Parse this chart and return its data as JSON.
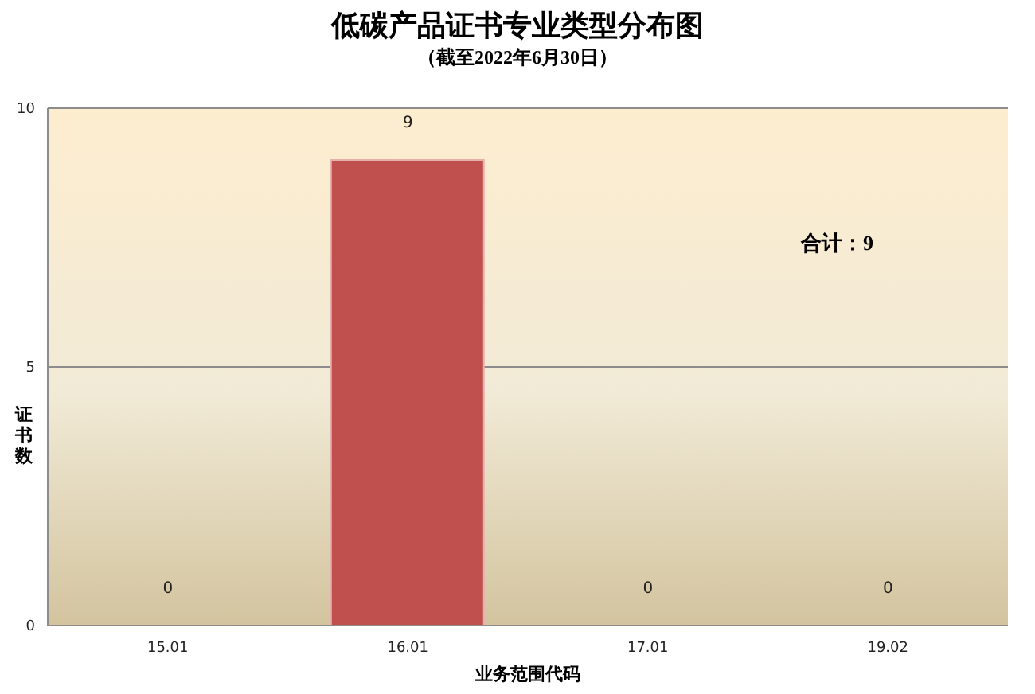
{
  "chart_data": {
    "type": "bar",
    "title": "低碳产品证书专业类型分布图",
    "subtitle": "（截至2022年6月30日）",
    "xlabel": "业务范围代码",
    "ylabel": "证书数",
    "categories": [
      "15.01",
      "16.01",
      "17.01",
      "19.02"
    ],
    "values": [
      0,
      9,
      0,
      0
    ],
    "color": "#c0504d",
    "ylim": [
      0,
      10
    ],
    "yticks": [
      0,
      5,
      10
    ],
    "grid": "y",
    "data_labels": true,
    "annotations": [
      "合计：9"
    ]
  }
}
